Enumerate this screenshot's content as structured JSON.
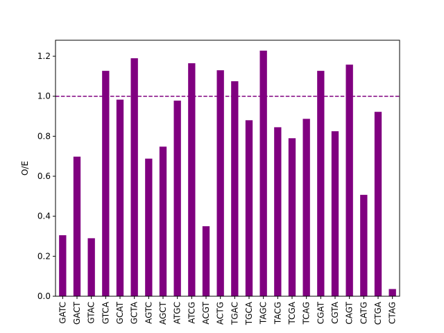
{
  "chart_data": {
    "type": "bar",
    "categories": [
      "GATC",
      "GACT",
      "GTAC",
      "GTCA",
      "GCAT",
      "GCTA",
      "AGTC",
      "AGCT",
      "ATGC",
      "ATCG",
      "ACGT",
      "ACTG",
      "TGAC",
      "TGCA",
      "TAGC",
      "TACG",
      "TCGA",
      "TCAG",
      "CGAT",
      "CGTA",
      "CAGT",
      "CATG",
      "CTGA",
      "CTAG"
    ],
    "values": [
      0.305,
      0.698,
      0.29,
      1.127,
      0.983,
      1.19,
      0.688,
      0.748,
      0.978,
      1.165,
      0.35,
      1.13,
      1.075,
      0.88,
      1.228,
      0.845,
      0.79,
      0.887,
      1.127,
      0.825,
      1.158,
      0.507,
      0.922,
      0.036
    ],
    "title": "",
    "xlabel": "",
    "ylabel": "O/E",
    "ylim": [
      0,
      1.28
    ],
    "yticks": [
      0.0,
      0.2,
      0.4,
      0.6,
      0.8,
      1.0,
      1.2
    ],
    "ytick_labels": [
      "0.0",
      "0.2",
      "0.4",
      "0.6",
      "0.8",
      "1.0",
      "1.2"
    ],
    "reference_line": {
      "y": 1.0,
      "style": "dashed",
      "color": "#800080"
    },
    "bar_color": "#800080",
    "grid": false
  }
}
